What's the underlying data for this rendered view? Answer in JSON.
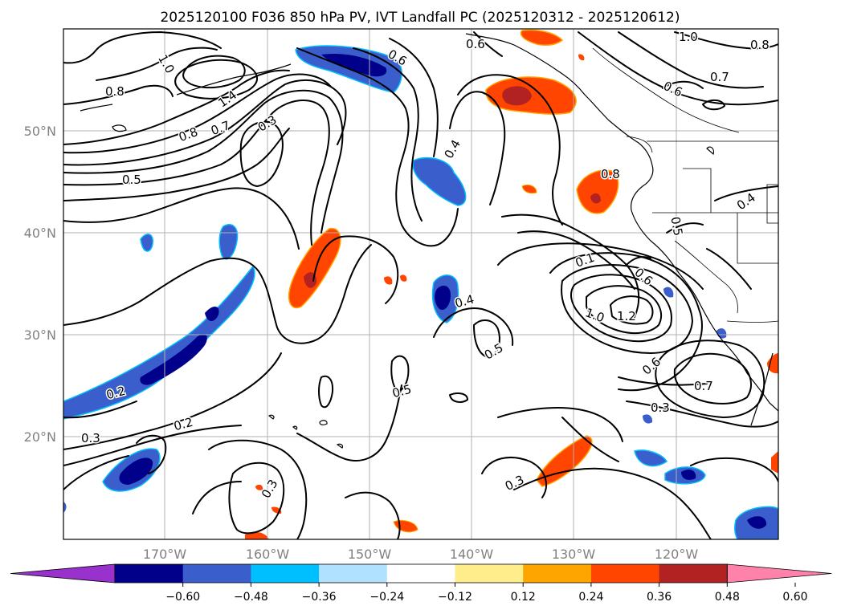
{
  "title": "2025120100 F036 850 hPa PV, IVT Landfall PC (2025120312 - 2025120612)",
  "latitude_labels": [
    "50°N",
    "40°N",
    "30°N",
    "20°N"
  ],
  "longitude_labels": [
    "170°W",
    "160°W",
    "150°W",
    "140°W",
    "130°W",
    "120°W"
  ],
  "contour_labels": [
    "1.0",
    "0.8",
    "1.4",
    "0.8",
    "0.7",
    "0.3",
    "0.5",
    "0.6",
    "0.6",
    "1.0",
    "0.7",
    "0.6",
    "0.8",
    "0.4",
    "0.8",
    "0.4",
    "0.5",
    "0.1",
    "0.6",
    "1.0",
    "1.2",
    "0.4",
    "0.5",
    "0.5",
    "0.6",
    "0.7",
    "0.3",
    "0.2",
    "0.2",
    "0.3",
    "0.3",
    "0.3"
  ],
  "colorbar": {
    "tick_labels": [
      "−0.60",
      "−0.48",
      "−0.36",
      "−0.24",
      "−0.12",
      "0.12",
      "0.24",
      "0.36",
      "0.48",
      "0.60"
    ],
    "colors": [
      "#9932cc",
      "#00008b",
      "#3a5fcd",
      "#00bfff",
      "#b0e2ff",
      "#ffffff",
      "#ffec8b",
      "#ffa500",
      "#ff4500",
      "#b22222",
      "#ff82ab"
    ]
  }
}
